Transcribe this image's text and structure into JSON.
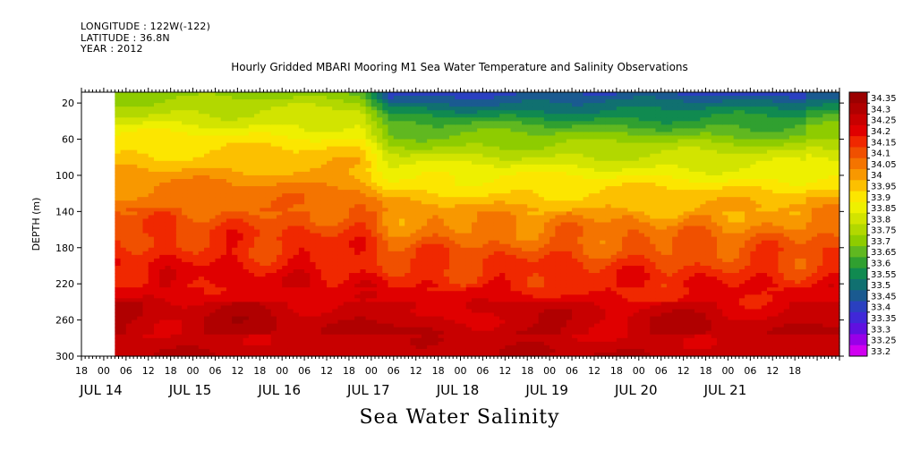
{
  "header": {
    "longitude": "LONGITUDE : 122W(-122)",
    "latitude": "LATITUDE : 36.8N",
    "year": "YEAR : 2012"
  },
  "chart_data": {
    "type": "heatmap",
    "title": "Hourly Gridded MBARI Mooring M1 Sea Water Temperature and Salinity Observations",
    "variable_label": "Sea Water Salinity",
    "ylabel": "DEPTH (m)",
    "ylim": [
      300,
      8
    ],
    "y_ticks": [
      "20",
      "60",
      "100",
      "140",
      "180",
      "220",
      "260",
      "300"
    ],
    "y_tick_values": [
      20,
      60,
      100,
      140,
      180,
      220,
      260,
      300
    ],
    "x_hour_ticks": [
      "18",
      "00",
      "06",
      "12",
      "18",
      "00",
      "06",
      "12",
      "18",
      "00",
      "06",
      "12",
      "18",
      "00",
      "06",
      "12",
      "18",
      "00",
      "06",
      "12",
      "18",
      "00",
      "06",
      "12",
      "18",
      "00",
      "06",
      "12",
      "18",
      "00",
      "06",
      "12",
      "18"
    ],
    "x_day_labels": [
      "JUL 14",
      "JUL 15",
      "JUL 16",
      "JUL 17",
      "JUL 18",
      "JUL 19",
      "JUL 20",
      "JUL 21"
    ],
    "x_range_hours": [
      0,
      204
    ],
    "data_start_hour": 9,
    "colorbar": {
      "levels": [
        "34.35",
        "34.3",
        "34.25",
        "34.2",
        "34.15",
        "34.1",
        "34.05",
        "34",
        "33.95",
        "33.9",
        "33.85",
        "33.8",
        "33.75",
        "33.7",
        "33.65",
        "33.6",
        "33.55",
        "33.5",
        "33.45",
        "33.4",
        "33.35",
        "33.3",
        "33.25",
        "33.2"
      ],
      "colors": [
        "#9b0000",
        "#b00000",
        "#c80000",
        "#e00000",
        "#f02800",
        "#f05000",
        "#f47400",
        "#f89800",
        "#fcc000",
        "#fce600",
        "#eef000",
        "#d2e400",
        "#b2d800",
        "#8ecc00",
        "#60b820",
        "#30a030",
        "#108a50",
        "#107070",
        "#1a5a90",
        "#2a40c0",
        "#4028d8",
        "#6010e0",
        "#9800e8",
        "#d000f0"
      ]
    },
    "grid": false,
    "legend": "right"
  }
}
